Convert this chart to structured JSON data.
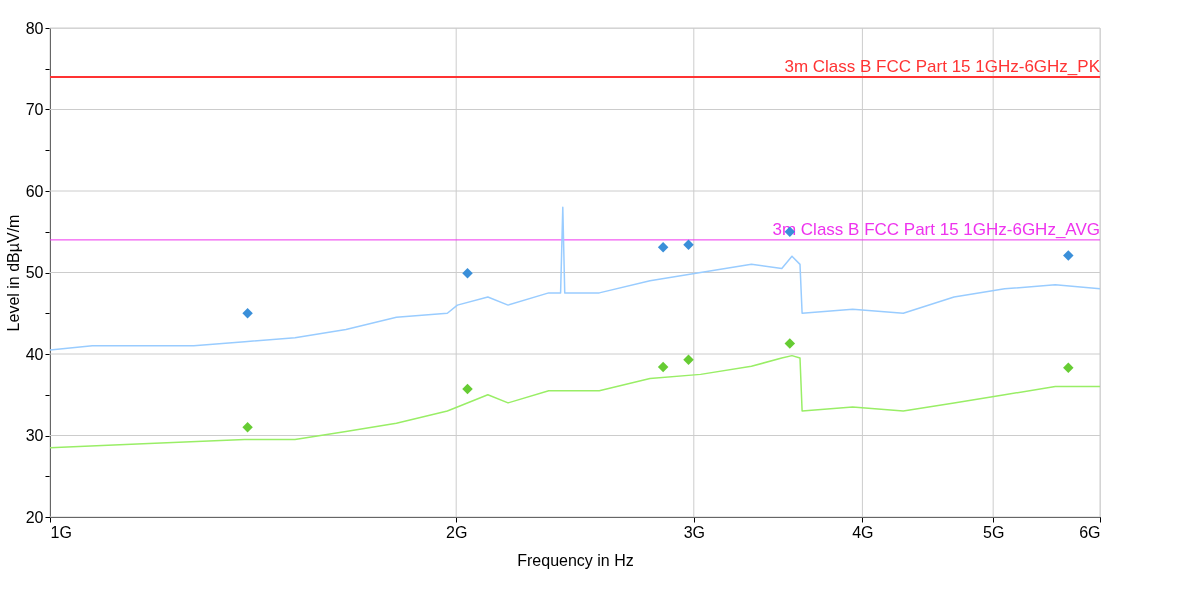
{
  "chart_data": {
    "type": "line",
    "xlabel": "Frequency in Hz",
    "ylabel": "Level in dBµV/m",
    "log": "x",
    "grid": true,
    "xlim": [
      1,
      6
    ],
    "xticks": [
      {
        "value": 1,
        "label": "1G"
      },
      {
        "value": 2,
        "label": "2G"
      },
      {
        "value": 3,
        "label": "3G"
      },
      {
        "value": 4,
        "label": "4G"
      },
      {
        "value": 5,
        "label": "5G"
      },
      {
        "value": 6,
        "label": "6G"
      }
    ],
    "ylim": [
      20,
      80
    ],
    "yticks": [
      20,
      {
        "value": 25,
        "label": null
      },
      30,
      {
        "value": 35,
        "label": null
      },
      40,
      {
        "value": 45,
        "label": null
      },
      50,
      {
        "value": 55,
        "label": null
      },
      60,
      {
        "value": 65,
        "label": null
      },
      70,
      {
        "value": 75,
        "label": null
      },
      80
    ],
    "ref_lines": [
      {
        "axis": "y",
        "value": 74,
        "label": "3m Class B FCC Part 15 1GHz-6GHz_PK",
        "color": "#ff3333",
        "line_style": "solid"
      },
      {
        "axis": "y",
        "value": 54,
        "label": "3m Class B FCC Part 15 1GHz-6GHz_AVG",
        "color": "#ee33ee",
        "line_style": "solid"
      }
    ],
    "series": [
      {
        "color": "#99ccff",
        "marker": "none",
        "x": [
          1.0,
          1.075,
          1.172,
          1.278,
          1.394,
          1.519,
          1.657,
          1.806,
          1.97,
          2.004,
          2.111,
          2.185,
          2.342,
          2.39,
          2.399,
          2.407,
          2.553,
          2.784,
          3.035,
          3.31,
          3.486,
          3.547,
          3.596,
          3.609,
          3.934,
          4.289,
          4.677,
          5.099,
          5.559,
          6.0
        ],
        "values": [
          40.5,
          41,
          41,
          41,
          41.5,
          42,
          43,
          44.5,
          45,
          46,
          47,
          46,
          47.5,
          47.5,
          58,
          47.5,
          47.5,
          49,
          50,
          51,
          50.5,
          52,
          51,
          45,
          45.5,
          45,
          47,
          48,
          48.5,
          48
        ]
      },
      {
        "color": "#99ee66",
        "marker": "none",
        "x": [
          1.0,
          1.172,
          1.394,
          1.519,
          1.657,
          1.806,
          1.97,
          2.004,
          2.111,
          2.185,
          2.342,
          2.553,
          2.784,
          3.035,
          3.31,
          3.486,
          3.547,
          3.596,
          3.609,
          3.934,
          4.289,
          4.677,
          5.099,
          5.559,
          6.0
        ],
        "values": [
          28.5,
          29,
          29.5,
          29.5,
          30.5,
          31.5,
          33,
          33.5,
          35,
          34,
          35.5,
          35.5,
          37,
          37.5,
          38.5,
          39.5,
          39.8,
          39.5,
          33,
          33.5,
          33,
          34,
          35,
          36,
          36
        ]
      },
      {
        "type": "scatter",
        "color": "#3a8fd9",
        "marker": "diamond",
        "x": [
          1.401,
          2.039,
          2.847,
          2.973,
          3.534,
          5.684
        ],
        "values": [
          45.0,
          49.9,
          53.1,
          53.4,
          55.0,
          52.1
        ]
      },
      {
        "type": "scatter",
        "color": "#66cc33",
        "marker": "diamond",
        "x": [
          1.401,
          2.039,
          2.847,
          2.973,
          3.534,
          5.684
        ],
        "values": [
          31.0,
          35.7,
          38.4,
          39.3,
          41.3,
          38.3
        ]
      }
    ]
  }
}
